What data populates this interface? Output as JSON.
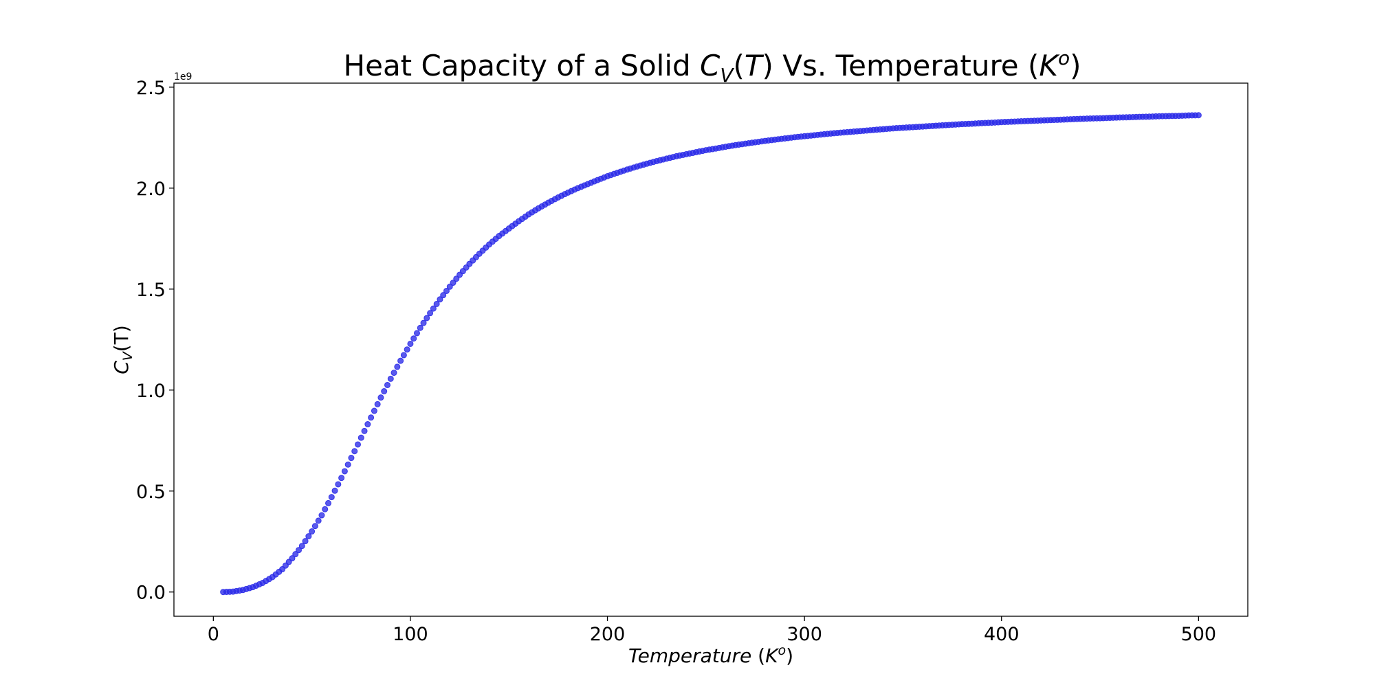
{
  "figure": {
    "title_prefix": "Heat Capacity of a Solid ",
    "title_symbol": "C",
    "title_subscript": "V",
    "title_arg": "(T)",
    "title_middle": " Vs. Temperature (",
    "title_unit": "K",
    "title_unit_sup": "o",
    "title_suffix": ")"
  },
  "chart_data": {
    "type": "scatter",
    "title": "Heat Capacity of a Solid C_V(T) Vs. Temperature (K^o)",
    "xlabel": "Temperature (K^o)",
    "xlabel_parts": {
      "word": "Temperature",
      "paren_open": " (",
      "unit": "K",
      "unit_sup": "o",
      "paren_close": ")"
    },
    "ylabel": "C_V(T)",
    "ylabel_parts": {
      "symbol": "C",
      "subscript": "V",
      "arg": "(T)"
    },
    "y_offset_label": "1e9",
    "xlim": [
      -20,
      525
    ],
    "ylim": [
      -0.12,
      2.52
    ],
    "y_scale_factor": 1000000000,
    "x_ticks": [
      0,
      100,
      200,
      300,
      400,
      500
    ],
    "x_tick_labels": [
      "0",
      "100",
      "200",
      "300",
      "400",
      "500"
    ],
    "y_ticks": [
      0.0,
      0.5,
      1.0,
      1.5,
      2.0,
      2.5
    ],
    "y_tick_labels": [
      "0.0",
      "0.5",
      "1.0",
      "1.5",
      "2.0",
      "2.5"
    ],
    "grid": false,
    "marker_color": "#2a2ae8",
    "series": [
      {
        "x": [
          5,
          10,
          15,
          20,
          25,
          30,
          35,
          40,
          45,
          50,
          55,
          60,
          65,
          70,
          75,
          80,
          85,
          90,
          95,
          100,
          105,
          110,
          115,
          120,
          125,
          130,
          135,
          140,
          145,
          150,
          155,
          160,
          165,
          170,
          175,
          180,
          185,
          190,
          195,
          200,
          205,
          210,
          215,
          220,
          225,
          230,
          235,
          240,
          245,
          250,
          255,
          260,
          265,
          270,
          275,
          280,
          285,
          290,
          295,
          300,
          305,
          310,
          315,
          320,
          325,
          330,
          335,
          340,
          345,
          350,
          355,
          360,
          365,
          370,
          375,
          380,
          385,
          390,
          395,
          400,
          405,
          410,
          415,
          420,
          425,
          430,
          435,
          440,
          445,
          450,
          455,
          460,
          465,
          470,
          475,
          480,
          485,
          490,
          495,
          500
        ],
        "y": [
          0.0,
          0.002,
          0.01,
          0.024,
          0.045,
          0.074,
          0.113,
          0.167,
          0.228,
          0.3,
          0.38,
          0.47,
          0.565,
          0.664,
          0.764,
          0.864,
          0.963,
          1.056,
          1.145,
          1.229,
          1.308,
          1.381,
          1.449,
          1.512,
          1.571,
          1.625,
          1.675,
          1.721,
          1.763,
          1.8,
          1.836,
          1.87,
          1.9,
          1.928,
          1.954,
          1.978,
          2.0,
          2.02,
          2.04,
          2.059,
          2.076,
          2.092,
          2.107,
          2.121,
          2.134,
          2.146,
          2.158,
          2.168,
          2.178,
          2.188,
          2.196,
          2.205,
          2.213,
          2.22,
          2.227,
          2.234,
          2.24,
          2.246,
          2.252,
          2.257,
          2.262,
          2.267,
          2.272,
          2.276,
          2.28,
          2.284,
          2.288,
          2.292,
          2.296,
          2.299,
          2.302,
          2.305,
          2.308,
          2.311,
          2.314,
          2.317,
          2.319,
          2.322,
          2.324,
          2.327,
          2.329,
          2.331,
          2.333,
          2.335,
          2.337,
          2.339,
          2.341,
          2.343,
          2.345,
          2.346,
          2.348,
          2.35,
          2.351,
          2.353,
          2.354,
          2.356,
          2.357,
          2.358,
          2.36,
          2.361
        ]
      }
    ]
  }
}
